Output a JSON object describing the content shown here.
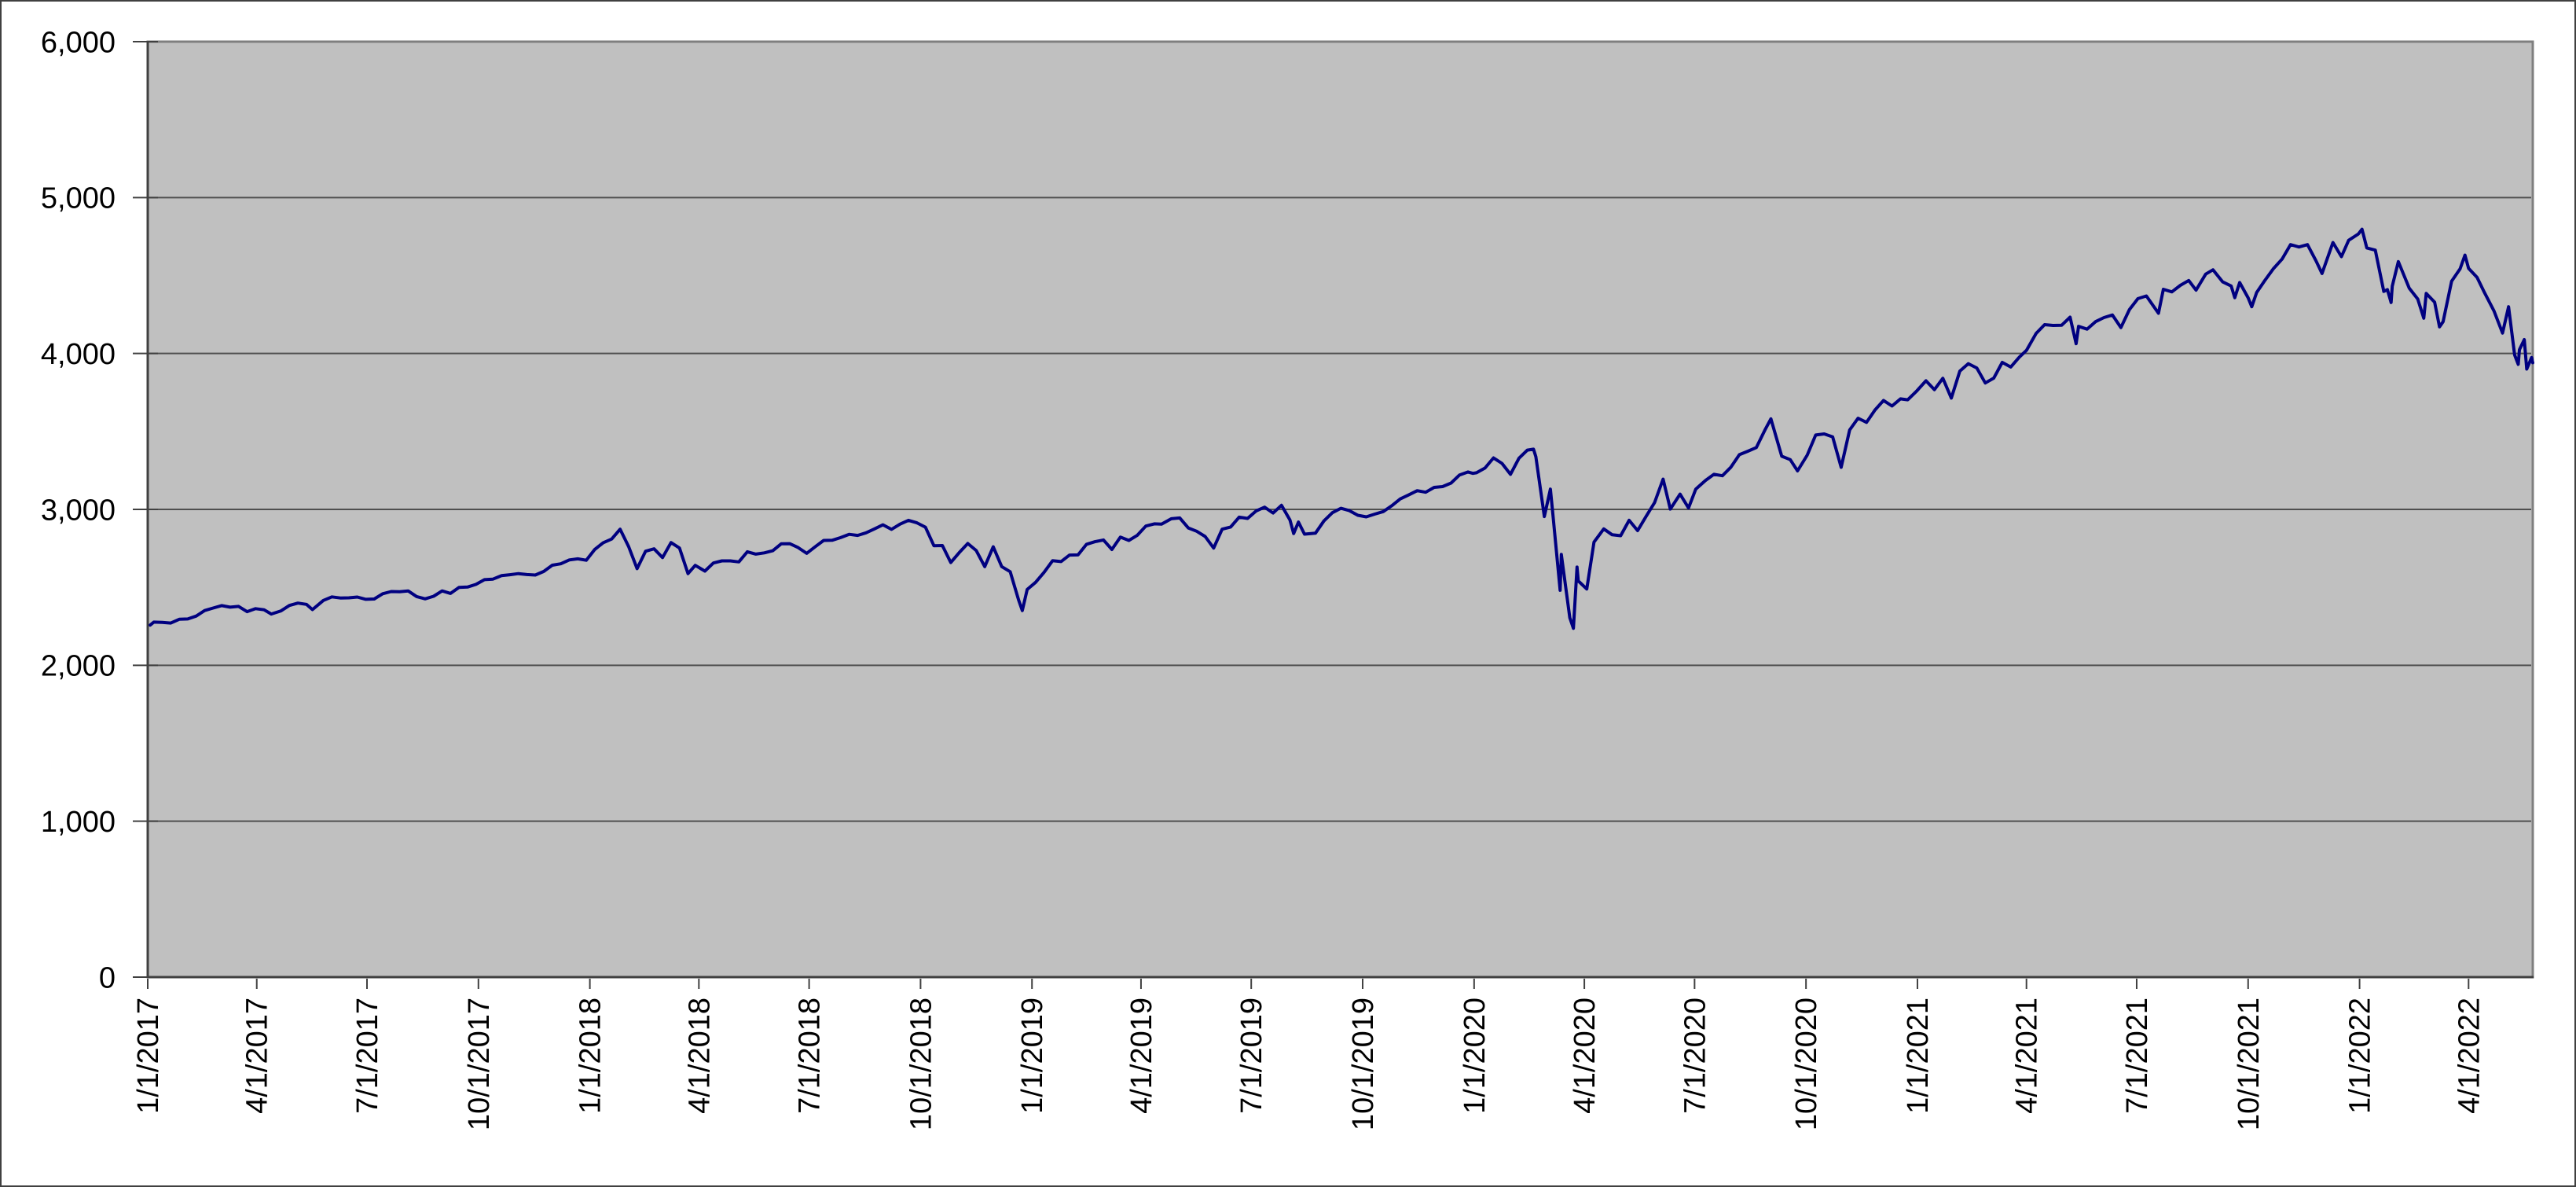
{
  "chart_data": {
    "type": "line",
    "title": "",
    "xlabel": "",
    "ylabel": "",
    "legend": "none",
    "grid": "horizontal-only",
    "ylim": [
      0,
      6000
    ],
    "y_tick_interval": 1000,
    "y_tick_labels": [
      "0",
      "1,000",
      "2,000",
      "3,000",
      "4,000",
      "5,000",
      "6,000"
    ],
    "x_tick_labels": [
      "1/1/2017",
      "4/1/2017",
      "7/1/2017",
      "10/1/2017",
      "1/1/2018",
      "4/1/2018",
      "7/1/2018",
      "10/1/2018",
      "1/1/2019",
      "4/1/2019",
      "7/1/2019",
      "10/1/2019",
      "1/1/2020",
      "4/1/2020",
      "7/1/2020",
      "10/1/2020",
      "1/1/2021",
      "4/1/2021",
      "7/1/2021",
      "10/1/2021",
      "1/1/2022",
      "4/1/2022"
    ],
    "x_start": "1/1/2017",
    "style": {
      "line_color": "#000080",
      "line_width": 4,
      "plot_bg_color": "#c0c0c0",
      "grid_color": "#4f4f4f",
      "plot_border_color": "#7f7f7f",
      "axis_color": "#404040",
      "label_color": "#000000",
      "outer_border_color": "#404040",
      "page_bg_color": "#ffffff"
    },
    "points": [
      [
        "1/3/2017",
        2258
      ],
      [
        "1/6/2017",
        2277
      ],
      [
        "1/13/2017",
        2275
      ],
      [
        "1/20/2017",
        2271
      ],
      [
        "1/27/2017",
        2295
      ],
      [
        "2/3/2017",
        2297
      ],
      [
        "2/10/2017",
        2316
      ],
      [
        "2/17/2017",
        2351
      ],
      [
        "2/24/2017",
        2367
      ],
      [
        "3/3/2017",
        2383
      ],
      [
        "3/10/2017",
        2373
      ],
      [
        "3/17/2017",
        2378
      ],
      [
        "3/24/2017",
        2344
      ],
      [
        "3/31/2017",
        2363
      ],
      [
        "4/7/2017",
        2356
      ],
      [
        "4/13/2017",
        2329
      ],
      [
        "4/21/2017",
        2349
      ],
      [
        "4/28/2017",
        2384
      ],
      [
        "5/5/2017",
        2399
      ],
      [
        "5/12/2017",
        2391
      ],
      [
        "5/17/2017",
        2357
      ],
      [
        "5/26/2017",
        2416
      ],
      [
        "6/2/2017",
        2439
      ],
      [
        "6/9/2017",
        2432
      ],
      [
        "6/16/2017",
        2433
      ],
      [
        "6/23/2017",
        2438
      ],
      [
        "6/30/2017",
        2423
      ],
      [
        "7/7/2017",
        2425
      ],
      [
        "7/14/2017",
        2459
      ],
      [
        "7/21/2017",
        2473
      ],
      [
        "7/28/2017",
        2472
      ],
      [
        "8/4/2017",
        2477
      ],
      [
        "8/11/2017",
        2441
      ],
      [
        "8/18/2017",
        2426
      ],
      [
        "8/25/2017",
        2443
      ],
      [
        "9/1/2017",
        2477
      ],
      [
        "9/8/2017",
        2461
      ],
      [
        "9/15/2017",
        2500
      ],
      [
        "9/22/2017",
        2502
      ],
      [
        "9/29/2017",
        2519
      ],
      [
        "10/6/2017",
        2549
      ],
      [
        "10/13/2017",
        2553
      ],
      [
        "10/20/2017",
        2575
      ],
      [
        "10/27/2017",
        2581
      ],
      [
        "11/3/2017",
        2588
      ],
      [
        "11/10/2017",
        2582
      ],
      [
        "11/17/2017",
        2579
      ],
      [
        "11/24/2017",
        2602
      ],
      [
        "12/1/2017",
        2642
      ],
      [
        "12/8/2017",
        2651
      ],
      [
        "12/15/2017",
        2676
      ],
      [
        "12/22/2017",
        2683
      ],
      [
        "12/29/2017",
        2674
      ],
      [
        "1/5/2018",
        2743
      ],
      [
        "1/12/2018",
        2786
      ],
      [
        "1/19/2018",
        2810
      ],
      [
        "1/26/2018",
        2873
      ],
      [
        "2/2/2018",
        2762
      ],
      [
        "2/9/2018",
        2620
      ],
      [
        "2/16/2018",
        2732
      ],
      [
        "2/23/2018",
        2747
      ],
      [
        "3/2/2018",
        2691
      ],
      [
        "3/9/2018",
        2787
      ],
      [
        "3/16/2018",
        2752
      ],
      [
        "3/23/2018",
        2588
      ],
      [
        "3/29/2018",
        2641
      ],
      [
        "4/6/2018",
        2604
      ],
      [
        "4/13/2018",
        2656
      ],
      [
        "4/20/2018",
        2670
      ],
      [
        "4/27/2018",
        2670
      ],
      [
        "5/4/2018",
        2663
      ],
      [
        "5/11/2018",
        2728
      ],
      [
        "5/18/2018",
        2713
      ],
      [
        "5/25/2018",
        2721
      ],
      [
        "6/1/2018",
        2735
      ],
      [
        "6/8/2018",
        2779
      ],
      [
        "6/15/2018",
        2780
      ],
      [
        "6/22/2018",
        2755
      ],
      [
        "6/29/2018",
        2718
      ],
      [
        "7/6/2018",
        2760
      ],
      [
        "7/13/2018",
        2801
      ],
      [
        "7/20/2018",
        2802
      ],
      [
        "7/27/2018",
        2819
      ],
      [
        "8/3/2018",
        2840
      ],
      [
        "8/10/2018",
        2833
      ],
      [
        "8/17/2018",
        2850
      ],
      [
        "8/24/2018",
        2875
      ],
      [
        "8/31/2018",
        2901
      ],
      [
        "9/7/2018",
        2872
      ],
      [
        "9/14/2018",
        2905
      ],
      [
        "9/21/2018",
        2930
      ],
      [
        "9/28/2018",
        2914
      ],
      [
        "10/5/2018",
        2886
      ],
      [
        "10/12/2018",
        2767
      ],
      [
        "10/19/2018",
        2768
      ],
      [
        "10/26/2018",
        2659
      ],
      [
        "11/2/2018",
        2723
      ],
      [
        "11/9/2018",
        2781
      ],
      [
        "11/16/2018",
        2736
      ],
      [
        "11/23/2018",
        2633
      ],
      [
        "11/30/2018",
        2760
      ],
      [
        "12/7/2018",
        2633
      ],
      [
        "12/14/2018",
        2600
      ],
      [
        "12/21/2018",
        2417
      ],
      [
        "12/24/2018",
        2351
      ],
      [
        "12/28/2018",
        2486
      ],
      [
        "1/4/2019",
        2532
      ],
      [
        "1/11/2019",
        2596
      ],
      [
        "1/18/2019",
        2671
      ],
      [
        "1/25/2019",
        2665
      ],
      [
        "2/1/2019",
        2707
      ],
      [
        "2/8/2019",
        2708
      ],
      [
        "2/15/2019",
        2776
      ],
      [
        "2/22/2019",
        2793
      ],
      [
        "3/1/2019",
        2804
      ],
      [
        "3/8/2019",
        2743
      ],
      [
        "3/15/2019",
        2822
      ],
      [
        "3/22/2019",
        2801
      ],
      [
        "3/29/2019",
        2834
      ],
      [
        "4/5/2019",
        2893
      ],
      [
        "4/12/2019",
        2907
      ],
      [
        "4/18/2019",
        2905
      ],
      [
        "4/26/2019",
        2940
      ],
      [
        "5/3/2019",
        2945
      ],
      [
        "5/10/2019",
        2881
      ],
      [
        "5/17/2019",
        2860
      ],
      [
        "5/24/2019",
        2826
      ],
      [
        "5/31/2019",
        2752
      ],
      [
        "6/7/2019",
        2873
      ],
      [
        "6/14/2019",
        2887
      ],
      [
        "6/21/2019",
        2950
      ],
      [
        "6/28/2019",
        2942
      ],
      [
        "7/5/2019",
        2990
      ],
      [
        "7/12/2019",
        3014
      ],
      [
        "7/19/2019",
        2977
      ],
      [
        "7/26/2019",
        3026
      ],
      [
        "8/2/2019",
        2932
      ],
      [
        "8/5/2019",
        2845
      ],
      [
        "8/9/2019",
        2919
      ],
      [
        "8/14/2019",
        2841
      ],
      [
        "8/23/2019",
        2847
      ],
      [
        "8/30/2019",
        2926
      ],
      [
        "9/6/2019",
        2979
      ],
      [
        "9/13/2019",
        3007
      ],
      [
        "9/20/2019",
        2992
      ],
      [
        "9/27/2019",
        2962
      ],
      [
        "10/4/2019",
        2952
      ],
      [
        "10/11/2019",
        2970
      ],
      [
        "10/18/2019",
        2986
      ],
      [
        "10/25/2019",
        3023
      ],
      [
        "11/1/2019",
        3067
      ],
      [
        "11/8/2019",
        3093
      ],
      [
        "11/15/2019",
        3120
      ],
      [
        "11/22/2019",
        3110
      ],
      [
        "11/29/2019",
        3141
      ],
      [
        "12/6/2019",
        3146
      ],
      [
        "12/13/2019",
        3169
      ],
      [
        "12/20/2019",
        3221
      ],
      [
        "12/27/2019",
        3240
      ],
      [
        "12/31/2019",
        3231
      ],
      [
        "1/3/2020",
        3235
      ],
      [
        "1/10/2020",
        3265
      ],
      [
        "1/17/2020",
        3330
      ],
      [
        "1/24/2020",
        3295
      ],
      [
        "1/31/2020",
        3225
      ],
      [
        "2/7/2020",
        3328
      ],
      [
        "2/14/2020",
        3380
      ],
      [
        "2/19/2020",
        3386
      ],
      [
        "2/21/2020",
        3338
      ],
      [
        "2/28/2020",
        2954
      ],
      [
        "3/4/2020",
        3130
      ],
      [
        "3/6/2020",
        2972
      ],
      [
        "3/12/2020",
        2481
      ],
      [
        "3/13/2020",
        2711
      ],
      [
        "3/20/2020",
        2305
      ],
      [
        "3/23/2020",
        2237
      ],
      [
        "3/26/2020",
        2630
      ],
      [
        "3/27/2020",
        2541
      ],
      [
        "4/3/2020",
        2489
      ],
      [
        "4/9/2020",
        2790
      ],
      [
        "4/17/2020",
        2875
      ],
      [
        "4/24/2020",
        2837
      ],
      [
        "5/1/2020",
        2831
      ],
      [
        "5/8/2020",
        2930
      ],
      [
        "5/15/2020",
        2864
      ],
      [
        "5/22/2020",
        2955
      ],
      [
        "5/29/2020",
        3044
      ],
      [
        "6/5/2020",
        3194
      ],
      [
        "6/11/2020",
        3002
      ],
      [
        "6/19/2020",
        3098
      ],
      [
        "6/26/2020",
        3009
      ],
      [
        "7/2/2020",
        3130
      ],
      [
        "7/10/2020",
        3185
      ],
      [
        "7/17/2020",
        3225
      ],
      [
        "7/24/2020",
        3216
      ],
      [
        "7/31/2020",
        3271
      ],
      [
        "8/7/2020",
        3351
      ],
      [
        "8/14/2020",
        3373
      ],
      [
        "8/21/2020",
        3397
      ],
      [
        "8/28/2020",
        3508
      ],
      [
        "9/2/2020",
        3581
      ],
      [
        "9/11/2020",
        3341
      ],
      [
        "9/18/2020",
        3319
      ],
      [
        "9/24/2020",
        3247
      ],
      [
        "10/2/2020",
        3348
      ],
      [
        "10/9/2020",
        3477
      ],
      [
        "10/16/2020",
        3484
      ],
      [
        "10/23/2020",
        3465
      ],
      [
        "10/30/2020",
        3270
      ],
      [
        "11/6/2020",
        3509
      ],
      [
        "11/13/2020",
        3585
      ],
      [
        "11/20/2020",
        3558
      ],
      [
        "11/27/2020",
        3638
      ],
      [
        "12/4/2020",
        3699
      ],
      [
        "12/11/2020",
        3663
      ],
      [
        "12/18/2020",
        3709
      ],
      [
        "12/24/2020",
        3703
      ],
      [
        "12/31/2020",
        3756
      ],
      [
        "1/8/2021",
        3825
      ],
      [
        "1/15/2021",
        3768
      ],
      [
        "1/22/2021",
        3841
      ],
      [
        "1/29/2021",
        3714
      ],
      [
        "2/5/2021",
        3887
      ],
      [
        "2/12/2021",
        3935
      ],
      [
        "2/19/2021",
        3907
      ],
      [
        "2/26/2021",
        3811
      ],
      [
        "3/5/2021",
        3842
      ],
      [
        "3/12/2021",
        3943
      ],
      [
        "3/19/2021",
        3913
      ],
      [
        "3/26/2021",
        3975
      ],
      [
        "4/1/2021",
        4020
      ],
      [
        "4/9/2021",
        4129
      ],
      [
        "4/16/2021",
        4185
      ],
      [
        "4/23/2021",
        4180
      ],
      [
        "4/30/2021",
        4181
      ],
      [
        "5/7/2021",
        4233
      ],
      [
        "5/12/2021",
        4063
      ],
      [
        "5/14/2021",
        4174
      ],
      [
        "5/21/2021",
        4156
      ],
      [
        "5/28/2021",
        4204
      ],
      [
        "6/4/2021",
        4230
      ],
      [
        "6/11/2021",
        4247
      ],
      [
        "6/18/2021",
        4166
      ],
      [
        "6/25/2021",
        4281
      ],
      [
        "7/2/2021",
        4352
      ],
      [
        "7/9/2021",
        4369
      ],
      [
        "7/19/2021",
        4258
      ],
      [
        "7/23/2021",
        4412
      ],
      [
        "7/30/2021",
        4395
      ],
      [
        "8/6/2021",
        4437
      ],
      [
        "8/13/2021",
        4468
      ],
      [
        "8/19/2021",
        4406
      ],
      [
        "8/27/2021",
        4509
      ],
      [
        "9/2/2021",
        4537
      ],
      [
        "9/10/2021",
        4459
      ],
      [
        "9/17/2021",
        4433
      ],
      [
        "9/20/2021",
        4358
      ],
      [
        "9/24/2021",
        4455
      ],
      [
        "10/1/2021",
        4357
      ],
      [
        "10/4/2021",
        4300
      ],
      [
        "10/8/2021",
        4391
      ],
      [
        "10/15/2021",
        4471
      ],
      [
        "10/22/2021",
        4545
      ],
      [
        "10/29/2021",
        4605
      ],
      [
        "11/5/2021",
        4698
      ],
      [
        "11/12/2021",
        4683
      ],
      [
        "11/19/2021",
        4698
      ],
      [
        "11/26/2021",
        4595
      ],
      [
        "12/1/2021",
        4513
      ],
      [
        "12/10/2021",
        4712
      ],
      [
        "12/17/2021",
        4621
      ],
      [
        "12/23/2021",
        4726
      ],
      [
        "12/31/2021",
        4766
      ],
      [
        "1/3/2022",
        4797
      ],
      [
        "1/7/2022",
        4677
      ],
      [
        "1/14/2022",
        4663
      ],
      [
        "1/21/2022",
        4398
      ],
      [
        "1/24/2022",
        4410
      ],
      [
        "1/27/2022",
        4327
      ],
      [
        "1/28/2022",
        4432
      ],
      [
        "2/2/2022",
        4589
      ],
      [
        "2/11/2022",
        4419
      ],
      [
        "2/18/2022",
        4349
      ],
      [
        "2/23/2022",
        4226
      ],
      [
        "2/25/2022",
        4385
      ],
      [
        "3/4/2022",
        4329
      ],
      [
        "3/8/2022",
        4171
      ],
      [
        "3/11/2022",
        4204
      ],
      [
        "3/18/2022",
        4463
      ],
      [
        "3/25/2022",
        4543
      ],
      [
        "3/29/2022",
        4631
      ],
      [
        "4/1/2022",
        4546
      ],
      [
        "4/8/2022",
        4488
      ],
      [
        "4/14/2022",
        4393
      ],
      [
        "4/22/2022",
        4272
      ],
      [
        "4/29/2022",
        4131
      ],
      [
        "5/4/2022",
        4300
      ],
      [
        "5/9/2022",
        3991
      ],
      [
        "5/12/2022",
        3930
      ],
      [
        "5/13/2022",
        4024
      ],
      [
        "5/17/2022",
        4089
      ],
      [
        "5/19/2022",
        3900
      ],
      [
        "5/23/2022",
        3974
      ],
      [
        "5/24/2022",
        3941
      ]
    ]
  }
}
